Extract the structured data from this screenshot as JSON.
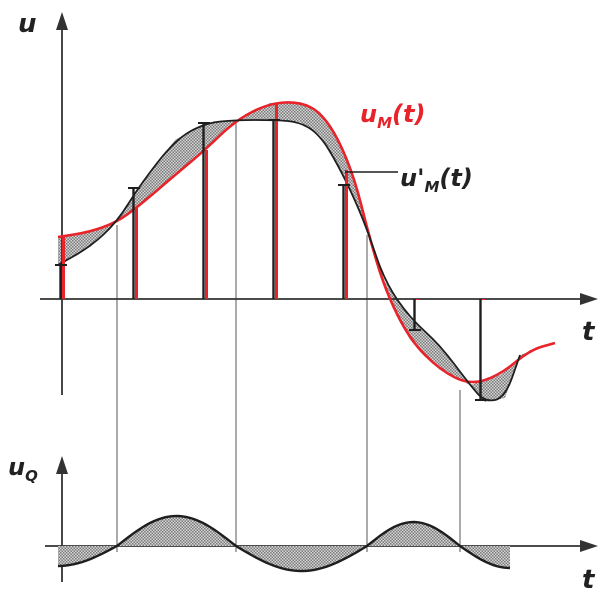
{
  "labels": {
    "u_axis": "u",
    "t_axis_top": "t",
    "t_axis_bottom": "t",
    "uq_main": "u",
    "uq_sub": "Q",
    "um_main": "u",
    "um_sub": "M",
    "um_arg": "(t)",
    "upm_main": "u'",
    "upm_sub": "M",
    "upm_arg": "(t)"
  },
  "colors": {
    "red": "#e8232a",
    "dark": "#1e1e1e",
    "hatch": "#9a9a9a"
  }
}
